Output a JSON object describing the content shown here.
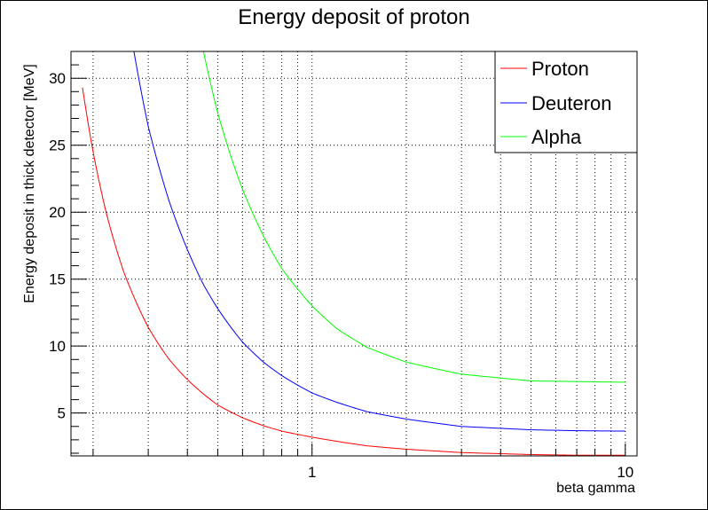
{
  "chart_data": {
    "type": "line",
    "title": "Energy deposit of proton",
    "xlabel": "beta gamma",
    "ylabel": "Energy deposit in thick detector [MeV]",
    "xscale": "log",
    "xlim": [
      0.17,
      10.9
    ],
    "ylim": [
      1.8,
      32
    ],
    "x_tick_labels": [
      {
        "value": 1,
        "label": "1"
      },
      {
        "value": 10,
        "label": "10"
      }
    ],
    "y_tick_labels": [
      {
        "value": 5,
        "label": "5"
      },
      {
        "value": 10,
        "label": "10"
      },
      {
        "value": 15,
        "label": "15"
      },
      {
        "value": 20,
        "label": "20"
      },
      {
        "value": 25,
        "label": "25"
      },
      {
        "value": 30,
        "label": "30"
      }
    ],
    "grid": true,
    "legend_position": "top-right",
    "series": [
      {
        "name": "Proton",
        "color": "#ff0000",
        "x": [
          0.185,
          0.2,
          0.22,
          0.25,
          0.3,
          0.35,
          0.4,
          0.5,
          0.6,
          0.7,
          0.8,
          1.0,
          1.5,
          2.0,
          3.0,
          5.0,
          7.0,
          10.0
        ],
        "y": [
          29.3,
          24.5,
          20.0,
          15.6,
          11.4,
          9.0,
          7.5,
          5.6,
          4.65,
          4.05,
          3.65,
          3.2,
          2.55,
          2.3,
          2.05,
          1.9,
          1.85,
          1.85
        ]
      },
      {
        "name": "Deuteron",
        "color": "#0000ff",
        "x": [
          0.27,
          0.3,
          0.35,
          0.4,
          0.45,
          0.5,
          0.6,
          0.7,
          0.8,
          1.0,
          1.2,
          1.5,
          2.0,
          3.0,
          5.0,
          7.0,
          10.0
        ],
        "y": [
          32.0,
          26.4,
          20.8,
          17.2,
          14.6,
          12.8,
          10.3,
          8.8,
          7.8,
          6.5,
          5.8,
          5.1,
          4.55,
          4.0,
          3.75,
          3.68,
          3.65
        ]
      },
      {
        "name": "Alpha",
        "color": "#00ff00",
        "x": [
          0.45,
          0.5,
          0.55,
          0.6,
          0.7,
          0.8,
          1.0,
          1.2,
          1.5,
          2.0,
          3.0,
          5.0,
          7.0,
          10.0
        ],
        "y": [
          32.0,
          27.4,
          24.2,
          21.7,
          18.2,
          15.8,
          13.0,
          11.3,
          9.9,
          8.8,
          7.9,
          7.4,
          7.35,
          7.3
        ]
      }
    ]
  }
}
